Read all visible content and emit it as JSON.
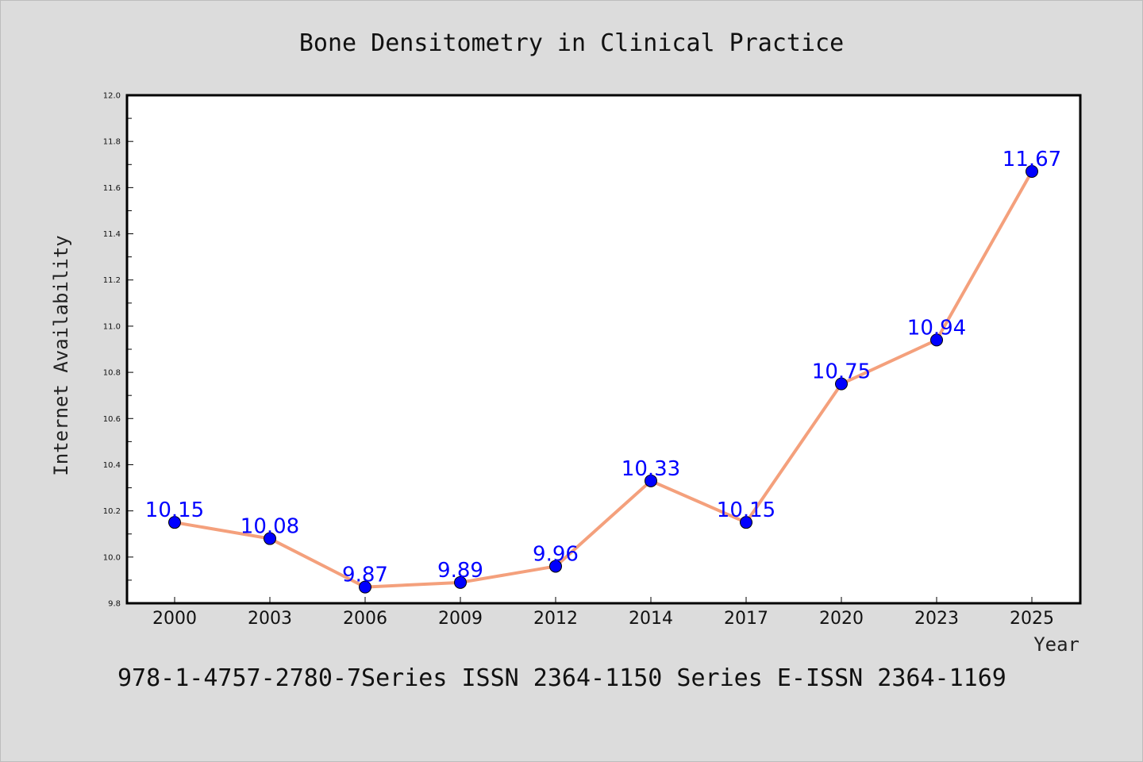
{
  "footer_text": "978-1-4757-2780-7Series ISSN 2364-1150 Series E-ISSN 2364-1169",
  "colors": {
    "background": "#dcdcdc",
    "plot_background": "#ffffff",
    "line": "#f4a07c",
    "marker": "#0000ff",
    "data_label": "#0000ff"
  },
  "chart_data": {
    "type": "line",
    "title": "Bone Densitometry in Clinical Practice",
    "xlabel": "Year",
    "ylabel": "Internet Availability",
    "categories": [
      "2000",
      "2003",
      "2006",
      "2009",
      "2012",
      "2014",
      "2017",
      "2020",
      "2023",
      "2025"
    ],
    "series": [
      {
        "values": [
          10.15,
          10.08,
          9.87,
          9.89,
          9.96,
          10.33,
          10.15,
          10.75,
          10.94,
          11.67
        ],
        "labels": [
          "10.15",
          "10.08",
          "9.87",
          "9.89",
          "9.96",
          "10.33",
          "10.15",
          "10.75",
          "10.94",
          "11.67"
        ]
      }
    ],
    "ylim": [
      9.8,
      12.0
    ],
    "yticks": [
      "9.8",
      "10.0",
      "10.2",
      "10.4",
      "10.6",
      "10.8",
      "11.0",
      "11.2",
      "11.4",
      "11.6",
      "11.8",
      "12.0"
    ],
    "grid": false,
    "legend": "none"
  }
}
